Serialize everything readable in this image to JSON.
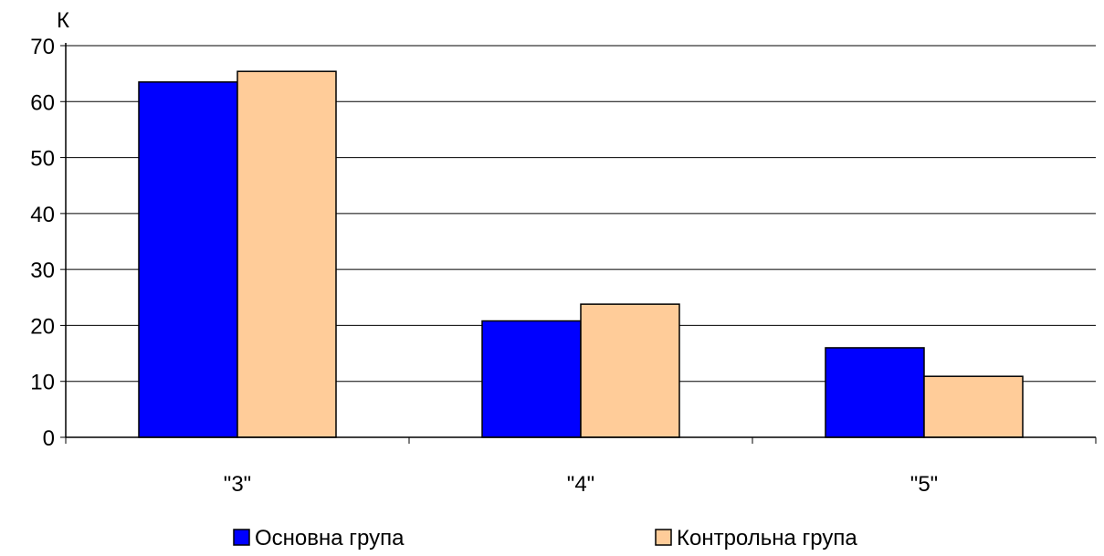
{
  "chart_data": {
    "type": "bar",
    "title": "",
    "xlabel": "",
    "ylabel": "К",
    "ylim": [
      0,
      70
    ],
    "yticks": [
      0,
      10,
      20,
      30,
      40,
      50,
      60,
      70
    ],
    "grid": true,
    "legend_position": "bottom",
    "categories": [
      "\"3\"",
      "\"4\"",
      "\"5\""
    ],
    "series": [
      {
        "name": "Основна група",
        "color": "#0000FF",
        "values": [
          63.5,
          20.8,
          16.0
        ]
      },
      {
        "name": "Контрольна група",
        "color": "#FFCC99",
        "values": [
          65.4,
          23.8,
          10.9
        ]
      }
    ]
  }
}
